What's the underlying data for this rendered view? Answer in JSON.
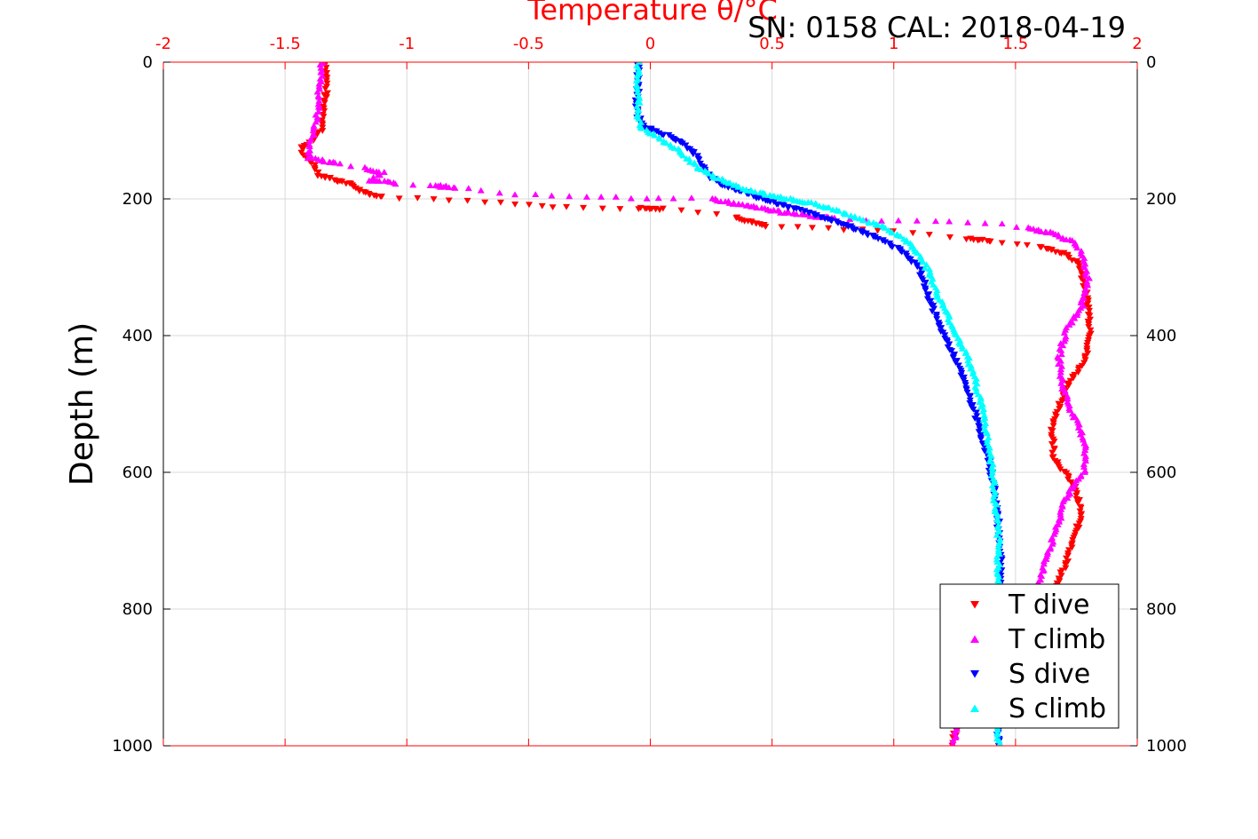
{
  "chart_data": {
    "type": "scatter",
    "title": "Temperature θ/°C",
    "subtitle": "SN: 0158  CAL: 2018-04-19",
    "xlabel": "Temperature θ/°C",
    "ylabel": "Depth (m)",
    "xlim": [
      -2,
      2
    ],
    "ylim": [
      0,
      1000
    ],
    "y_reversed": true,
    "grid": true,
    "x_ticks": [
      "-2",
      "-1.5",
      "-1",
      "-0.5",
      "0",
      "0.5",
      "1",
      "1.5",
      "2"
    ],
    "y_ticks": [
      "0",
      "200",
      "400",
      "600",
      "800",
      "1000"
    ],
    "legend_position": "bottom-right",
    "colors": {
      "axis": "#ff0000",
      "temp_axis": "#ff0000",
      "grid": "#d9d9d9"
    },
    "series": [
      {
        "name": "T dive",
        "color": "#ff0000",
        "marker": "triangle-down",
        "points": [
          [
            -1.33,
            0
          ],
          [
            -1.33,
            20
          ],
          [
            -1.33,
            40
          ],
          [
            -1.34,
            60
          ],
          [
            -1.34,
            80
          ],
          [
            -1.35,
            100
          ],
          [
            -1.39,
            115
          ],
          [
            -1.43,
            125
          ],
          [
            -1.43,
            135
          ],
          [
            -1.38,
            150
          ],
          [
            -1.36,
            165
          ],
          [
            -1.3,
            172
          ],
          [
            -1.22,
            180
          ],
          [
            -1.19,
            190
          ],
          [
            -1.1,
            197
          ],
          [
            -0.95,
            200
          ],
          [
            -0.82,
            202
          ],
          [
            -0.68,
            204
          ],
          [
            -0.55,
            207
          ],
          [
            -0.45,
            210
          ],
          [
            -0.35,
            212
          ],
          [
            -0.2,
            213
          ],
          [
            -0.05,
            214
          ],
          [
            0.05,
            215
          ],
          [
            0.2,
            220
          ],
          [
            0.35,
            227
          ],
          [
            0.42,
            235
          ],
          [
            0.48,
            240
          ],
          [
            0.6,
            242
          ],
          [
            0.8,
            245
          ],
          [
            1.0,
            248
          ],
          [
            1.15,
            252
          ],
          [
            1.3,
            258
          ],
          [
            1.4,
            262
          ],
          [
            1.5,
            266
          ],
          [
            1.6,
            270
          ],
          [
            1.7,
            280
          ],
          [
            1.76,
            295
          ],
          [
            1.78,
            320
          ],
          [
            1.8,
            360
          ],
          [
            1.81,
            400
          ],
          [
            1.78,
            440
          ],
          [
            1.72,
            470
          ],
          [
            1.68,
            500
          ],
          [
            1.65,
            540
          ],
          [
            1.66,
            580
          ],
          [
            1.74,
            620
          ],
          [
            1.77,
            660
          ],
          [
            1.74,
            700
          ],
          [
            1.7,
            740
          ],
          [
            1.65,
            780
          ],
          [
            1.56,
            820
          ],
          [
            1.47,
            860
          ],
          [
            1.38,
            900
          ],
          [
            1.31,
            940
          ],
          [
            1.26,
            970
          ],
          [
            1.24,
            1000
          ]
        ]
      },
      {
        "name": "T climb",
        "color": "#ff00ff",
        "marker": "triangle-up",
        "points": [
          [
            -1.35,
            0
          ],
          [
            -1.35,
            20
          ],
          [
            -1.36,
            40
          ],
          [
            -1.36,
            60
          ],
          [
            -1.37,
            80
          ],
          [
            -1.38,
            100
          ],
          [
            -1.4,
            120
          ],
          [
            -1.4,
            140
          ],
          [
            -1.28,
            148
          ],
          [
            -1.17,
            155
          ],
          [
            -1.1,
            162
          ],
          [
            -1.15,
            172
          ],
          [
            -1.05,
            177
          ],
          [
            -0.9,
            180
          ],
          [
            -0.8,
            183
          ],
          [
            -0.7,
            187
          ],
          [
            -0.55,
            193
          ],
          [
            -0.4,
            195
          ],
          [
            -0.2,
            198
          ],
          [
            0.1,
            199
          ],
          [
            0.25,
            200
          ],
          [
            0.4,
            210
          ],
          [
            0.55,
            220
          ],
          [
            0.75,
            228
          ],
          [
            0.95,
            232
          ],
          [
            1.1,
            233
          ],
          [
            1.3,
            234
          ],
          [
            1.45,
            237
          ],
          [
            1.55,
            243
          ],
          [
            1.65,
            250
          ],
          [
            1.75,
            265
          ],
          [
            1.78,
            290
          ],
          [
            1.8,
            320
          ],
          [
            1.77,
            360
          ],
          [
            1.72,
            385
          ],
          [
            1.7,
            400
          ],
          [
            1.68,
            430
          ],
          [
            1.69,
            470
          ],
          [
            1.73,
            510
          ],
          [
            1.79,
            560
          ],
          [
            1.78,
            600
          ],
          [
            1.7,
            640
          ],
          [
            1.67,
            680
          ],
          [
            1.63,
            720
          ],
          [
            1.6,
            760
          ],
          [
            1.55,
            800
          ],
          [
            1.48,
            840
          ],
          [
            1.4,
            880
          ],
          [
            1.33,
            920
          ],
          [
            1.27,
            960
          ],
          [
            1.24,
            1000
          ]
        ]
      },
      {
        "name": "S dive",
        "color": "#0000ff",
        "marker": "triangle-down",
        "points": [
          [
            -0.05,
            0
          ],
          [
            -0.05,
            20
          ],
          [
            -0.05,
            40
          ],
          [
            -0.06,
            60
          ],
          [
            -0.05,
            80
          ],
          [
            -0.02,
            95
          ],
          [
            0.05,
            105
          ],
          [
            0.12,
            115
          ],
          [
            0.15,
            125
          ],
          [
            0.2,
            140
          ],
          [
            0.22,
            155
          ],
          [
            0.25,
            170
          ],
          [
            0.3,
            180
          ],
          [
            0.38,
            190
          ],
          [
            0.45,
            200
          ],
          [
            0.55,
            210
          ],
          [
            0.65,
            220
          ],
          [
            0.75,
            232
          ],
          [
            0.85,
            245
          ],
          [
            0.95,
            260
          ],
          [
            1.05,
            280
          ],
          [
            1.1,
            300
          ],
          [
            1.12,
            320
          ],
          [
            1.15,
            350
          ],
          [
            1.18,
            380
          ],
          [
            1.22,
            410
          ],
          [
            1.26,
            440
          ],
          [
            1.3,
            480
          ],
          [
            1.34,
            520
          ],
          [
            1.37,
            560
          ],
          [
            1.4,
            600
          ],
          [
            1.42,
            640
          ],
          [
            1.43,
            680
          ],
          [
            1.44,
            720
          ],
          [
            1.44,
            760
          ],
          [
            1.43,
            800
          ],
          [
            1.43,
            850
          ],
          [
            1.43,
            900
          ],
          [
            1.43,
            950
          ],
          [
            1.43,
            1000
          ]
        ]
      },
      {
        "name": "S climb",
        "color": "#00ffff",
        "marker": "triangle-up",
        "points": [
          [
            -0.05,
            0
          ],
          [
            -0.05,
            20
          ],
          [
            -0.05,
            40
          ],
          [
            -0.05,
            60
          ],
          [
            -0.05,
            80
          ],
          [
            -0.04,
            95
          ],
          [
            0.03,
            110
          ],
          [
            0.1,
            125
          ],
          [
            0.15,
            140
          ],
          [
            0.2,
            155
          ],
          [
            0.28,
            170
          ],
          [
            0.38,
            185
          ],
          [
            0.5,
            195
          ],
          [
            0.65,
            205
          ],
          [
            0.75,
            215
          ],
          [
            0.85,
            228
          ],
          [
            0.95,
            240
          ],
          [
            1.03,
            255
          ],
          [
            1.08,
            270
          ],
          [
            1.12,
            290
          ],
          [
            1.15,
            310
          ],
          [
            1.18,
            340
          ],
          [
            1.22,
            370
          ],
          [
            1.26,
            400
          ],
          [
            1.3,
            430
          ],
          [
            1.33,
            460
          ],
          [
            1.36,
            500
          ],
          [
            1.38,
            540
          ],
          [
            1.4,
            580
          ],
          [
            1.41,
            620
          ],
          [
            1.42,
            660
          ],
          [
            1.43,
            700
          ],
          [
            1.43,
            750
          ],
          [
            1.43,
            800
          ],
          [
            1.43,
            850
          ],
          [
            1.43,
            900
          ],
          [
            1.43,
            950
          ],
          [
            1.43,
            1000
          ]
        ]
      }
    ]
  }
}
